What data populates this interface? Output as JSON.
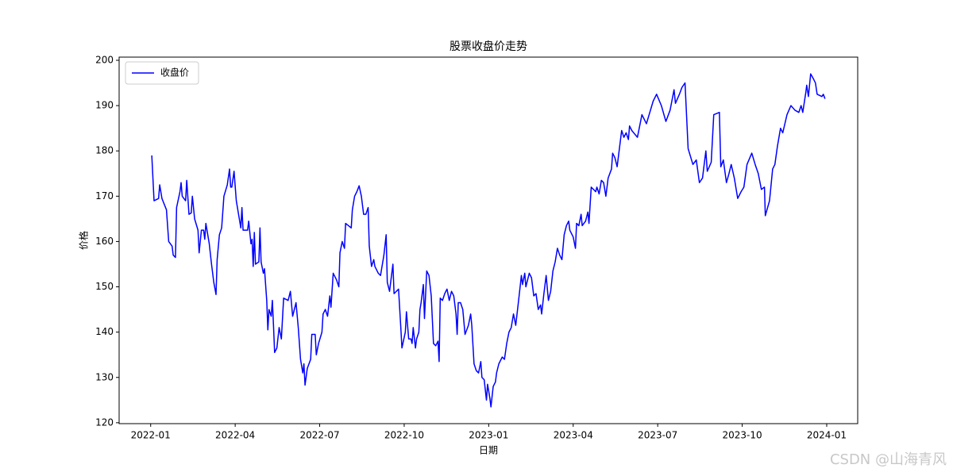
{
  "chart_data": {
    "type": "line",
    "title": "股票收盘价走势",
    "x_label": "日期",
    "y_label": "价格",
    "watermark": "CSDN @山海青风",
    "legend": "upper left",
    "grid": false,
    "xlim": [
      -1.12,
      25.1
    ],
    "ylim": [
      119.8,
      200.7
    ],
    "xticks": [
      {
        "value": 0,
        "label": "2022-01"
      },
      {
        "value": 3,
        "label": "2022-04"
      },
      {
        "value": 6,
        "label": "2022-07"
      },
      {
        "value": 9,
        "label": "2022-10"
      },
      {
        "value": 12,
        "label": "2023-01"
      },
      {
        "value": 15,
        "label": "2023-04"
      },
      {
        "value": 18,
        "label": "2023-07"
      },
      {
        "value": 21,
        "label": "2023-10"
      },
      {
        "value": 24,
        "label": "2024-01"
      }
    ],
    "yticks": [
      120,
      130,
      140,
      150,
      160,
      170,
      180,
      190,
      200
    ],
    "x": [
      0.04,
      0.12,
      0.28,
      0.32,
      0.4,
      0.56,
      0.64,
      0.76,
      0.8,
      0.88,
      0.92,
      1.04,
      1.08,
      1.12,
      1.24,
      1.28,
      1.36,
      1.44,
      1.48,
      1.56,
      1.68,
      1.72,
      1.8,
      1.88,
      1.92,
      1.96,
      2.08,
      2.16,
      2.24,
      2.32,
      2.36,
      2.44,
      2.52,
      2.6,
      2.72,
      2.8,
      2.84,
      2.88,
      2.96,
      3.04,
      3.12,
      3.2,
      3.24,
      3.28,
      3.44,
      3.48,
      3.56,
      3.6,
      3.64,
      3.68,
      3.72,
      3.84,
      3.88,
      3.92,
      4.0,
      4.04,
      4.12,
      4.16,
      4.2,
      4.28,
      4.32,
      4.36,
      4.4,
      4.48,
      4.56,
      4.64,
      4.72,
      4.88,
      4.96,
      5.04,
      5.16,
      5.24,
      5.32,
      5.4,
      5.44,
      5.48,
      5.56,
      5.68,
      5.72,
      5.84,
      5.88,
      5.96,
      6.08,
      6.12,
      6.2,
      6.28,
      6.36,
      6.4,
      6.48,
      6.6,
      6.68,
      6.72,
      6.8,
      6.88,
      6.92,
      7.12,
      7.16,
      7.24,
      7.32,
      7.4,
      7.48,
      7.56,
      7.64,
      7.72,
      7.76,
      7.84,
      7.92,
      7.96,
      8.08,
      8.16,
      8.28,
      8.36,
      8.4,
      8.48,
      8.6,
      8.64,
      8.8,
      8.88,
      8.92,
      9.04,
      9.08,
      9.16,
      9.24,
      9.28,
      9.32,
      9.4,
      9.44,
      9.52,
      9.56,
      9.6,
      9.68,
      9.72,
      9.8,
      9.88,
      9.96,
      10.04,
      10.12,
      10.2,
      10.24,
      10.28,
      10.36,
      10.44,
      10.52,
      10.6,
      10.68,
      10.76,
      10.84,
      10.88,
      10.92,
      11.0,
      11.08,
      11.16,
      11.28,
      11.36,
      11.4,
      11.48,
      11.56,
      11.64,
      11.72,
      11.76,
      11.84,
      11.92,
      11.96,
      12.04,
      12.08,
      12.16,
      12.24,
      12.28,
      12.36,
      12.48,
      12.56,
      12.64,
      12.72,
      12.8,
      12.88,
      12.96,
      13.08,
      13.16,
      13.2,
      13.28,
      13.32,
      13.44,
      13.52,
      13.6,
      13.68,
      13.76,
      13.84,
      13.88,
      13.96,
      14.04,
      14.12,
      14.2,
      14.28,
      14.36,
      14.44,
      14.52,
      14.6,
      14.68,
      14.76,
      14.84,
      14.88,
      15.0,
      15.08,
      15.12,
      15.2,
      15.28,
      15.32,
      15.44,
      15.52,
      15.56,
      15.64,
      15.8,
      15.84,
      15.92,
      16.0,
      16.08,
      16.16,
      16.24,
      16.36,
      16.4,
      16.48,
      16.56,
      16.64,
      16.72,
      16.8,
      16.88,
      16.96,
      17.0,
      17.08,
      17.28,
      17.44,
      17.6,
      17.84,
      17.96,
      18.13,
      18.29,
      18.44,
      18.58,
      18.63,
      18.77,
      18.86,
      18.97,
      19.08,
      19.25,
      19.37,
      19.48,
      19.59,
      19.71,
      19.76,
      19.9,
      19.99,
      20.19,
      20.24,
      20.33,
      20.44,
      20.53,
      20.61,
      20.72,
      20.84,
      20.96,
      21.06,
      21.17,
      21.34,
      21.46,
      21.57,
      21.68,
      21.79,
      21.82,
      21.97,
      22.08,
      22.16,
      22.25,
      22.36,
      22.44,
      22.59,
      22.73,
      22.87,
      23.01,
      23.09,
      23.15,
      23.26,
      23.29,
      23.35,
      23.43,
      23.52,
      23.6,
      23.66,
      23.83,
      23.88,
      23.94
    ],
    "series": [
      {
        "name": "收盘价",
        "color": "#0000ff",
        "values": [
          179,
          169,
          169.5,
          172.5,
          169.5,
          167,
          160,
          159,
          157,
          156.5,
          167.5,
          171,
          173,
          170,
          169,
          173.5,
          166,
          166.3,
          170,
          165,
          162.5,
          157.5,
          162.5,
          162.5,
          160.5,
          164,
          159.5,
          155,
          151,
          148.3,
          156,
          161.5,
          163,
          170,
          172.5,
          176,
          172,
          172,
          175.5,
          169,
          166,
          163,
          167.5,
          162.5,
          162.5,
          164.5,
          159.5,
          160.5,
          154.5,
          162,
          155,
          155.5,
          163,
          155.5,
          153,
          154,
          147,
          140.5,
          145,
          143.5,
          147,
          141.5,
          135.5,
          136.5,
          141,
          138.5,
          147.5,
          147,
          149,
          143.5,
          146.5,
          141,
          134,
          131,
          133,
          128.3,
          132,
          134,
          139.5,
          139.5,
          135,
          137.5,
          140,
          144,
          145,
          143.5,
          148,
          145.5,
          153,
          151.5,
          150,
          157.5,
          160,
          158.5,
          164,
          163,
          167,
          170,
          171,
          172.3,
          170,
          166,
          166,
          167.5,
          159,
          154.5,
          156,
          154.5,
          153,
          152.5,
          157,
          161.5,
          151,
          149,
          155,
          148.5,
          149.5,
          141,
          136.5,
          140,
          144.5,
          138.5,
          138.5,
          137.5,
          141,
          136.5,
          138.5,
          140,
          145,
          146.5,
          150.5,
          143,
          153.5,
          152.5,
          148,
          137.5,
          137,
          138,
          133.5,
          147.5,
          147,
          148.5,
          149.5,
          147,
          149,
          148,
          144,
          139.5,
          146.5,
          146.5,
          145,
          139.5,
          141.5,
          144,
          141.5,
          133,
          131.5,
          131,
          133.5,
          130,
          129.5,
          125,
          128.5,
          125.5,
          123.5,
          128,
          129,
          131,
          133,
          134.5,
          134,
          137.5,
          140,
          141,
          144,
          141.5,
          148,
          152.5,
          150.5,
          153,
          150,
          153,
          152,
          148,
          148.5,
          145,
          146,
          144,
          148.5,
          152.5,
          147,
          149,
          153.5,
          155.5,
          158.5,
          157,
          156,
          161.5,
          163.5,
          164.5,
          162.5,
          161,
          158.5,
          164,
          163.5,
          166,
          163.5,
          164.5,
          166.5,
          164,
          172,
          171,
          172,
          170.5,
          173.5,
          173,
          170,
          174,
          176,
          179.5,
          178.5,
          176.5,
          180.5,
          184.5,
          183,
          184,
          182.5,
          185.5,
          184.5,
          183,
          188,
          186,
          191,
          192.5,
          190,
          186.5,
          189,
          193.5,
          190.5,
          192.5,
          194,
          195,
          180.5,
          177,
          178,
          173,
          174,
          180,
          175.5,
          177.5,
          188,
          188.5,
          176.5,
          178,
          173,
          175,
          177,
          174,
          169.5,
          171,
          172,
          177,
          179.5,
          177,
          175,
          171.5,
          172,
          165.7,
          169,
          176,
          177,
          181,
          185,
          184,
          188,
          190,
          189,
          188.5,
          190,
          188.5,
          193,
          194.5,
          192,
          197,
          196,
          195,
          192.5,
          192,
          192.5,
          191.5
        ]
      }
    ]
  }
}
